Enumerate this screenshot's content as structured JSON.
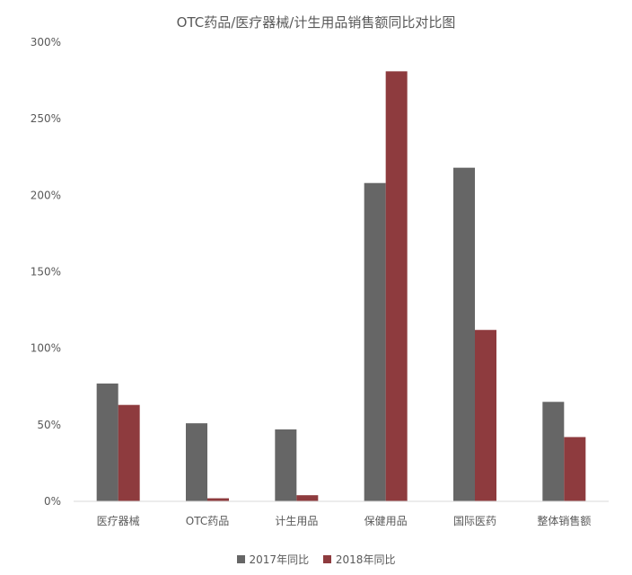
{
  "chart_data": {
    "type": "bar",
    "title": "OTC药品/医疗器械/计生用品销售额同比对比图",
    "categories": [
      "医疗器械",
      "OTC药品",
      "计生用品",
      "保健用品",
      "国际医药",
      "整体销售额"
    ],
    "series": [
      {
        "name": "2017年同比",
        "color": "#666666",
        "values": [
          77,
          51,
          47,
          208,
          218,
          65
        ]
      },
      {
        "name": "2018年同比",
        "color": "#8e3b3e",
        "values": [
          63,
          2,
          4,
          281,
          112,
          42
        ]
      }
    ],
    "ylim": [
      0,
      300
    ],
    "yticks": [
      {
        "value": 0,
        "label": "0%"
      },
      {
        "value": 50,
        "label": "50%"
      },
      {
        "value": 100,
        "label": "100%"
      },
      {
        "value": 150,
        "label": "150%"
      },
      {
        "value": 200,
        "label": "200%"
      },
      {
        "value": 250,
        "label": "250%"
      },
      {
        "value": 300,
        "label": "300%"
      }
    ],
    "grid": false,
    "legend_position": "bottom"
  }
}
